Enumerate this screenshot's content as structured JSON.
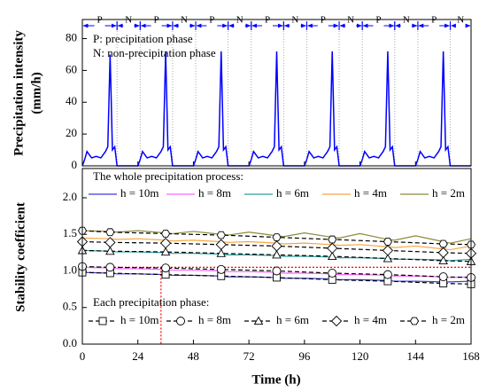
{
  "chart_data": [
    {
      "type": "line",
      "ylabel": [
        "Precipitation intensity",
        "(mm/h)"
      ],
      "xlim": [
        0,
        168
      ],
      "ylim": [
        0,
        92
      ],
      "yticks": [
        0,
        20,
        40,
        60,
        80
      ],
      "annotations": [
        "P: precipitation phase",
        "N: non-precipitation phase"
      ],
      "phase_color": "#0000ff",
      "phases": [
        {
          "label": "P",
          "start": 0,
          "end": 15
        },
        {
          "label": "N",
          "start": 15,
          "end": 25
        },
        {
          "label": "P",
          "start": 25,
          "end": 39
        },
        {
          "label": "N",
          "start": 39,
          "end": 49
        },
        {
          "label": "P",
          "start": 49,
          "end": 63
        },
        {
          "label": "N",
          "start": 63,
          "end": 73
        },
        {
          "label": "P",
          "start": 73,
          "end": 87
        },
        {
          "label": "N",
          "start": 87,
          "end": 97
        },
        {
          "label": "P",
          "start": 97,
          "end": 111
        },
        {
          "label": "N",
          "start": 111,
          "end": 121
        },
        {
          "label": "P",
          "start": 121,
          "end": 135
        },
        {
          "label": "N",
          "start": 135,
          "end": 145
        },
        {
          "label": "P",
          "start": 145,
          "end": 159
        },
        {
          "label": "N",
          "start": 159,
          "end": 168
        }
      ],
      "color": "#0000ff",
      "x": [
        0,
        1,
        2,
        4,
        6,
        8,
        10,
        11,
        12,
        13,
        14,
        15,
        24,
        25,
        26,
        28,
        30,
        32,
        34,
        35,
        36,
        37,
        38,
        39,
        48,
        49,
        50,
        52,
        54,
        56,
        58,
        59,
        60,
        61,
        62,
        63,
        72,
        73,
        74,
        76,
        78,
        80,
        82,
        83,
        84,
        85,
        86,
        87,
        96,
        97,
        98,
        100,
        102,
        104,
        106,
        107,
        108,
        109,
        110,
        111,
        120,
        121,
        122,
        124,
        126,
        128,
        130,
        131,
        132,
        133,
        134,
        135,
        144,
        145,
        146,
        148,
        150,
        152,
        154,
        155,
        156,
        157,
        158,
        159,
        168
      ],
      "values": [
        0,
        4,
        9,
        5,
        6,
        5,
        9,
        12,
        70,
        10,
        12,
        0,
        0,
        4,
        9,
        5,
        6,
        5,
        9,
        12,
        72,
        10,
        12,
        0,
        0,
        4,
        9,
        5,
        6,
        5,
        9,
        12,
        72,
        10,
        12,
        0,
        0,
        4,
        9,
        5,
        6,
        5,
        9,
        12,
        72,
        10,
        12,
        0,
        0,
        4,
        9,
        5,
        6,
        5,
        9,
        12,
        72,
        10,
        12,
        0,
        0,
        4,
        9,
        5,
        6,
        5,
        9,
        12,
        72,
        10,
        12,
        0,
        0,
        4,
        9,
        5,
        6,
        5,
        9,
        12,
        72,
        10,
        12,
        0,
        0
      ]
    },
    {
      "type": "line",
      "ylabel": "Stability coefficient",
      "xlabel": "Time (h)",
      "xlim": [
        0,
        168
      ],
      "xticks": [
        0,
        24,
        48,
        72,
        96,
        120,
        144,
        168
      ],
      "ylim": [
        0,
        2.4
      ],
      "yticks": [
        {
          "value": 0,
          "label": "0.0"
        },
        0.5,
        {
          "value": 1,
          "label": "1.0"
        },
        1.5,
        {
          "value": 2,
          "label": "2.0"
        }
      ],
      "reference_lines": {
        "color": "#ff0000",
        "x": 34,
        "y": 1.05
      },
      "series_groups": [
        {
          "title": "The whole precipitation process:",
          "style": "solid",
          "x": [
            0,
            12,
            15,
            24,
            36,
            39,
            48,
            60,
            63,
            72,
            84,
            87,
            96,
            108,
            111,
            120,
            132,
            135,
            144,
            156,
            159,
            168
          ],
          "series": [
            {
              "name": "h = 10m",
              "color": "#3b3bd6",
              "values": [
                0.98,
                0.97,
                0.96,
                0.96,
                0.95,
                0.94,
                0.94,
                0.93,
                0.92,
                0.92,
                0.91,
                0.9,
                0.9,
                0.89,
                0.88,
                0.88,
                0.87,
                0.86,
                0.86,
                0.85,
                0.85,
                0.86
              ]
            },
            {
              "name": "h = 8m",
              "color": "#ff66ff",
              "values": [
                1.05,
                1.04,
                1.03,
                1.03,
                1.02,
                1.01,
                1.01,
                1.0,
                0.99,
                0.99,
                0.98,
                0.97,
                0.97,
                0.96,
                0.95,
                0.95,
                0.94,
                0.93,
                0.93,
                0.92,
                0.91,
                0.92
              ]
            },
            {
              "name": "h = 6m",
              "color": "#2aa0a0",
              "values": [
                1.28,
                1.27,
                1.26,
                1.26,
                1.25,
                1.24,
                1.24,
                1.23,
                1.22,
                1.22,
                1.21,
                1.2,
                1.2,
                1.19,
                1.18,
                1.18,
                1.17,
                1.16,
                1.16,
                1.15,
                1.14,
                1.16
              ]
            },
            {
              "name": "h = 4m",
              "color": "#f5a742",
              "values": [
                1.45,
                1.44,
                1.43,
                1.44,
                1.42,
                1.41,
                1.42,
                1.4,
                1.39,
                1.4,
                1.38,
                1.37,
                1.38,
                1.36,
                1.35,
                1.36,
                1.33,
                1.32,
                1.34,
                1.3,
                1.29,
                1.34
              ]
            },
            {
              "name": "h = 2m",
              "color": "#8b8b3a",
              "values": [
                1.55,
                1.54,
                1.53,
                1.55,
                1.52,
                1.51,
                1.54,
                1.5,
                1.49,
                1.53,
                1.48,
                1.47,
                1.52,
                1.46,
                1.45,
                1.51,
                1.43,
                1.42,
                1.48,
                1.4,
                1.38,
                1.44
              ]
            }
          ]
        },
        {
          "title": "Each precipitation phase:",
          "style": "dashed",
          "x": [
            0,
            12,
            36,
            60,
            84,
            108,
            132,
            156,
            168
          ],
          "series": [
            {
              "name": "h = 10m",
              "color": "#000000",
              "marker": "square",
              "values": [
                0.98,
                0.97,
                0.95,
                0.93,
                0.91,
                0.88,
                0.86,
                0.83,
                0.82
              ]
            },
            {
              "name": "h = 8m",
              "color": "#000000",
              "marker": "circle",
              "values": [
                1.06,
                1.05,
                1.04,
                1.02,
                1.0,
                0.97,
                0.95,
                0.92,
                0.91
              ]
            },
            {
              "name": "h = 6m",
              "color": "#000000",
              "marker": "triangle",
              "values": [
                1.28,
                1.27,
                1.26,
                1.24,
                1.22,
                1.2,
                1.17,
                1.14,
                1.13
              ]
            },
            {
              "name": "h = 4m",
              "color": "#000000",
              "marker": "diamond",
              "values": [
                1.4,
                1.39,
                1.38,
                1.36,
                1.34,
                1.31,
                1.28,
                1.25,
                1.24
              ]
            },
            {
              "name": "h = 2m",
              "color": "#000000",
              "marker": "hexagon",
              "values": [
                1.55,
                1.53,
                1.51,
                1.49,
                1.46,
                1.43,
                1.4,
                1.37,
                1.36
              ]
            }
          ]
        }
      ]
    }
  ]
}
